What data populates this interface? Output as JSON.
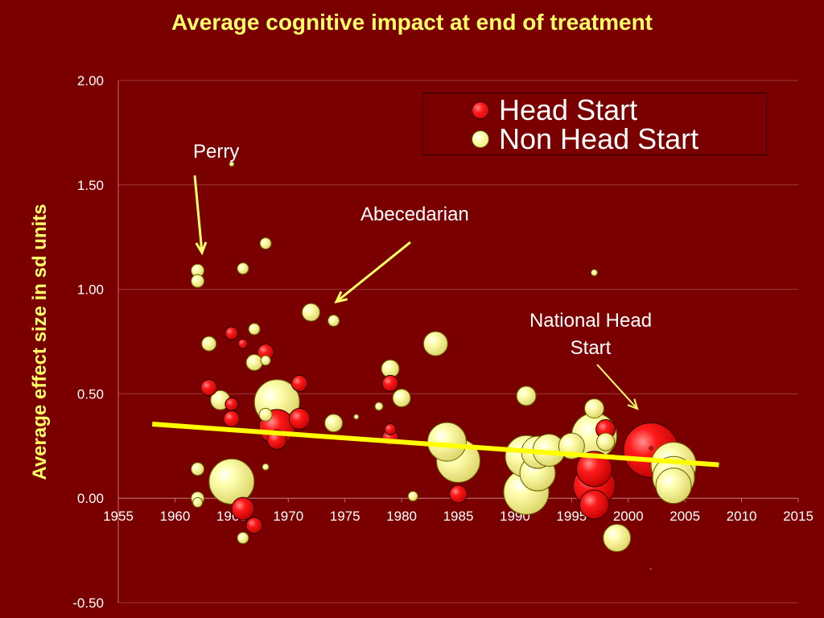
{
  "title": "Average cognitive impact at end of treatment",
  "chart_data": {
    "type": "scatter",
    "title": "Average cognitive impact at end of treatment",
    "xlabel": "",
    "ylabel": "Average effect size in sd units",
    "xlim": [
      1955,
      2015
    ],
    "ylim": [
      -0.5,
      2.0
    ],
    "x_ticks": [
      "1955",
      "1960",
      "1965",
      "1970",
      "1975",
      "1980",
      "1985",
      "1990",
      "1995",
      "2000",
      "2005",
      "2010",
      "2015"
    ],
    "y_ticks": [
      "-0.50",
      "0.00",
      "0.50",
      "1.00",
      "1.50",
      "2.00"
    ],
    "grid": "horizontal",
    "legend": "top-right",
    "colors": {
      "head_start": "#ff1a1a",
      "non_head_start": "#ffff99",
      "trend": "#ffff00",
      "background": "#7a0000"
    },
    "series": [
      {
        "name": "Head Start",
        "points": [
          {
            "x": 1963,
            "y": 0.53,
            "size": 10
          },
          {
            "x": 1965,
            "y": 0.79,
            "size": 8
          },
          {
            "x": 1966,
            "y": 0.74,
            "size": 6
          },
          {
            "x": 1968,
            "y": 0.7,
            "size": 10
          },
          {
            "x": 1965,
            "y": 0.45,
            "size": 8
          },
          {
            "x": 1965,
            "y": 0.38,
            "size": 10
          },
          {
            "x": 1966,
            "y": -0.05,
            "size": 14
          },
          {
            "x": 1967,
            "y": -0.13,
            "size": 10
          },
          {
            "x": 1969,
            "y": 0.34,
            "size": 22
          },
          {
            "x": 1969,
            "y": 0.28,
            "size": 12
          },
          {
            "x": 1971,
            "y": 0.38,
            "size": 13
          },
          {
            "x": 1971,
            "y": 0.55,
            "size": 10
          },
          {
            "x": 1979,
            "y": 0.55,
            "size": 10
          },
          {
            "x": 1979,
            "y": 0.33,
            "size": 7
          },
          {
            "x": 1979,
            "y": 0.29,
            "size": 10
          },
          {
            "x": 1985,
            "y": 0.02,
            "size": 11
          },
          {
            "x": 1997,
            "y": 0.14,
            "size": 22
          },
          {
            "x": 1997,
            "y": 0.06,
            "size": 26
          },
          {
            "x": 1997,
            "y": -0.03,
            "size": 18
          },
          {
            "x": 1998,
            "y": 0.33,
            "size": 12
          },
          {
            "x": 2002,
            "y": 0.23,
            "size": 34
          },
          {
            "x": 2002,
            "y": 0.24,
            "size": 2
          },
          {
            "x": 2002,
            "y": -0.34,
            "size": 2
          }
        ]
      },
      {
        "name": "Non Head Start",
        "points": [
          {
            "x": 1965,
            "y": 1.6,
            "size": 3
          },
          {
            "x": 1962,
            "y": 1.09,
            "size": 8
          },
          {
            "x": 1962,
            "y": 1.04,
            "size": 8
          },
          {
            "x": 1966,
            "y": 1.1,
            "size": 7
          },
          {
            "x": 1968,
            "y": 1.22,
            "size": 7
          },
          {
            "x": 1967,
            "y": 0.81,
            "size": 7
          },
          {
            "x": 1963,
            "y": 0.74,
            "size": 9
          },
          {
            "x": 1967,
            "y": 0.65,
            "size": 10
          },
          {
            "x": 1968,
            "y": 0.66,
            "size": 6
          },
          {
            "x": 1964,
            "y": 0.47,
            "size": 12
          },
          {
            "x": 1962,
            "y": 0.14,
            "size": 8
          },
          {
            "x": 1962,
            "y": 0.0,
            "size": 8
          },
          {
            "x": 1962,
            "y": -0.02,
            "size": 6
          },
          {
            "x": 1965,
            "y": 0.08,
            "size": 28
          },
          {
            "x": 1966,
            "y": -0.19,
            "size": 7
          },
          {
            "x": 1968,
            "y": 0.15,
            "size": 4
          },
          {
            "x": 1968,
            "y": 0.4,
            "size": 8
          },
          {
            "x": 1969,
            "y": 0.46,
            "size": 28
          },
          {
            "x": 1972,
            "y": 0.89,
            "size": 11
          },
          {
            "x": 1974,
            "y": 0.85,
            "size": 7
          },
          {
            "x": 1974,
            "y": 0.36,
            "size": 11
          },
          {
            "x": 1976,
            "y": 0.39,
            "size": 3
          },
          {
            "x": 1978,
            "y": 0.44,
            "size": 5
          },
          {
            "x": 1979,
            "y": 0.62,
            "size": 11
          },
          {
            "x": 1980,
            "y": 0.48,
            "size": 11
          },
          {
            "x": 1981,
            "y": 0.01,
            "size": 6
          },
          {
            "x": 1983,
            "y": 0.74,
            "size": 15
          },
          {
            "x": 1984,
            "y": 0.27,
            "size": 24
          },
          {
            "x": 1985,
            "y": 0.18,
            "size": 27
          },
          {
            "x": 1991,
            "y": 0.49,
            "size": 12
          },
          {
            "x": 1991,
            "y": 0.2,
            "size": 26
          },
          {
            "x": 1991,
            "y": 0.03,
            "size": 28
          },
          {
            "x": 1992,
            "y": 0.12,
            "size": 22
          },
          {
            "x": 1992,
            "y": 0.22,
            "size": 20
          },
          {
            "x": 1993,
            "y": 0.23,
            "size": 20
          },
          {
            "x": 1995,
            "y": 0.25,
            "size": 16
          },
          {
            "x": 1997,
            "y": 0.43,
            "size": 12
          },
          {
            "x": 1997,
            "y": 0.3,
            "size": 28
          },
          {
            "x": 1997,
            "y": 1.08,
            "size": 4
          },
          {
            "x": 1998,
            "y": 0.27,
            "size": 11
          },
          {
            "x": 1999,
            "y": -0.19,
            "size": 17
          },
          {
            "x": 2004,
            "y": 0.16,
            "size": 28
          },
          {
            "x": 2004,
            "y": 0.1,
            "size": 26
          },
          {
            "x": 2004,
            "y": 0.06,
            "size": 22
          }
        ]
      }
    ],
    "trend_line": {
      "x": [
        1958,
        2008
      ],
      "y": [
        0.355,
        0.16
      ]
    }
  },
  "legend": {
    "head_start": "Head Start",
    "non_head_start": "Non Head Start"
  },
  "annotations": {
    "perry": "Perry",
    "abecedarian": "Abecedarian",
    "national_head_start_1": "National Head",
    "national_head_start_2": "Start"
  }
}
